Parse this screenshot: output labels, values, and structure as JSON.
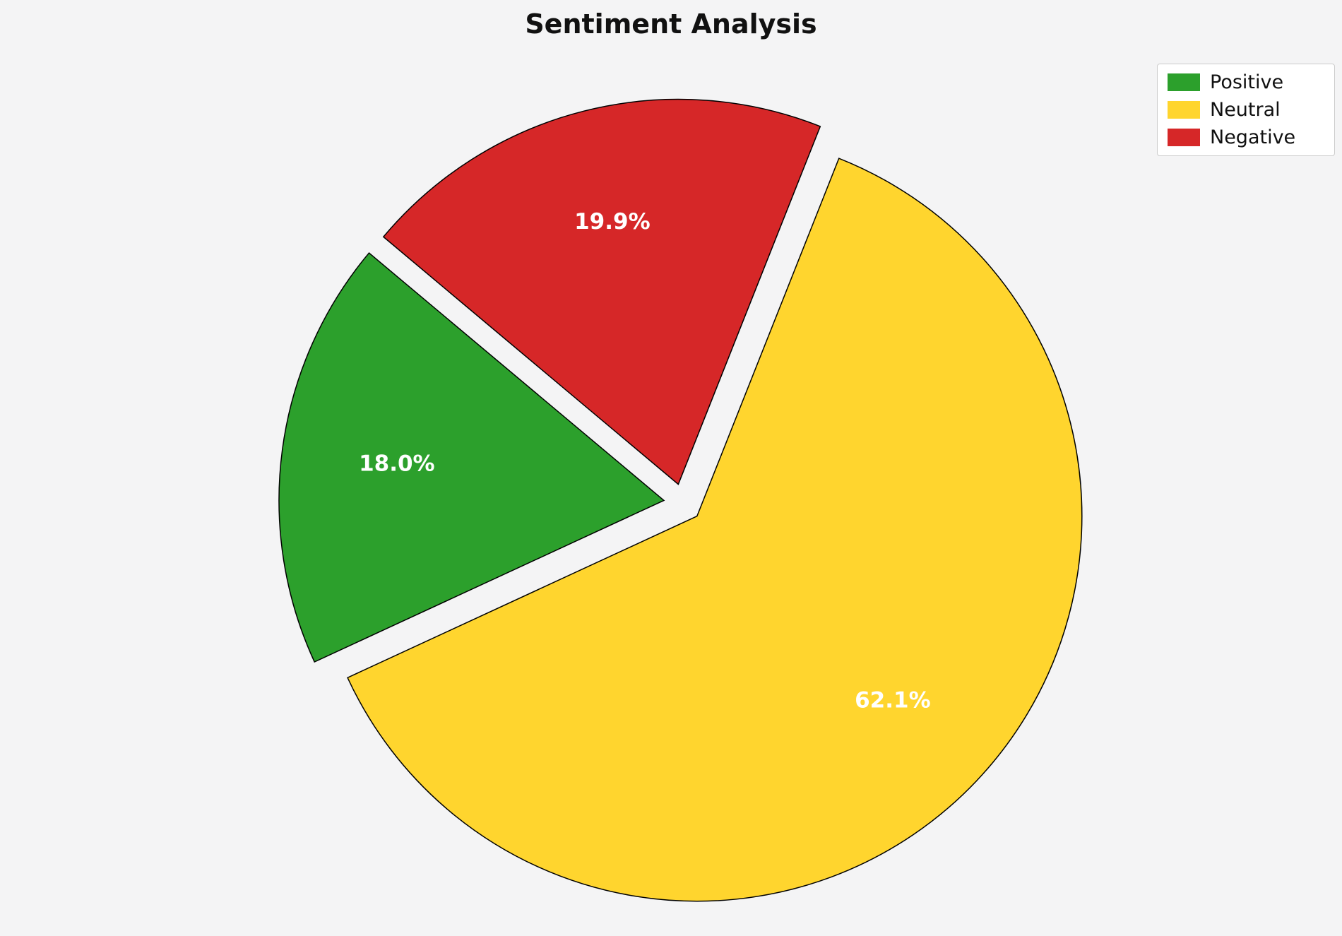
{
  "title": "Sentiment Analysis",
  "chart_data": {
    "type": "pie",
    "title": "Sentiment Analysis",
    "labels": [
      "Positive",
      "Neutral",
      "Negative"
    ],
    "values": [
      18.0,
      62.1,
      19.9
    ],
    "display_labels": [
      "18.0%",
      "62.1%",
      "19.9%"
    ],
    "colors": [
      "#2ca02c",
      "#ffd52e",
      "#d62728"
    ],
    "start_angle": 140,
    "counterclockwise": true,
    "explode": 0.05,
    "label_distance": 0.7,
    "edge_color": "#000000",
    "label_color": "#ffffff",
    "background": "#f4f4f5",
    "legend_position": "upper right"
  },
  "legend": {
    "items": [
      {
        "label": "Positive",
        "color": "#2ca02c"
      },
      {
        "label": "Neutral",
        "color": "#ffd52e"
      },
      {
        "label": "Negative",
        "color": "#d62728"
      }
    ]
  }
}
